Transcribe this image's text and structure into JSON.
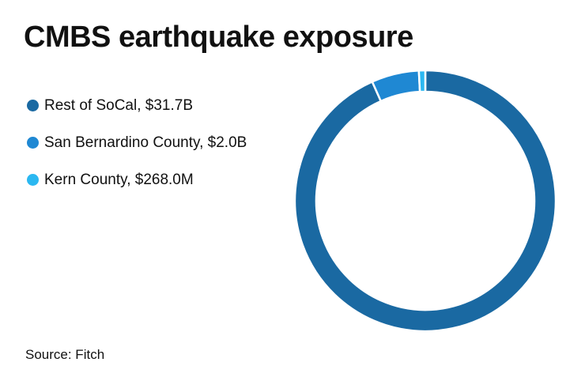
{
  "chart_data": {
    "type": "pie",
    "variant": "donut",
    "title": "CMBS earthquake exposure",
    "categories": [
      "Rest of SoCal",
      "San Bernardino County",
      "Kern County"
    ],
    "values": [
      31.7,
      2.0,
      0.268
    ],
    "unit": "$B",
    "legend_labels": [
      "Rest of SoCal, $31.7B",
      "San Bernardino County, $2.0B",
      "Kern County, $268.0M"
    ],
    "colors": [
      "#1a69a2",
      "#1f88d3",
      "#2bb8f1"
    ],
    "legend_position": "top-left",
    "source": "Source: Fitch"
  }
}
